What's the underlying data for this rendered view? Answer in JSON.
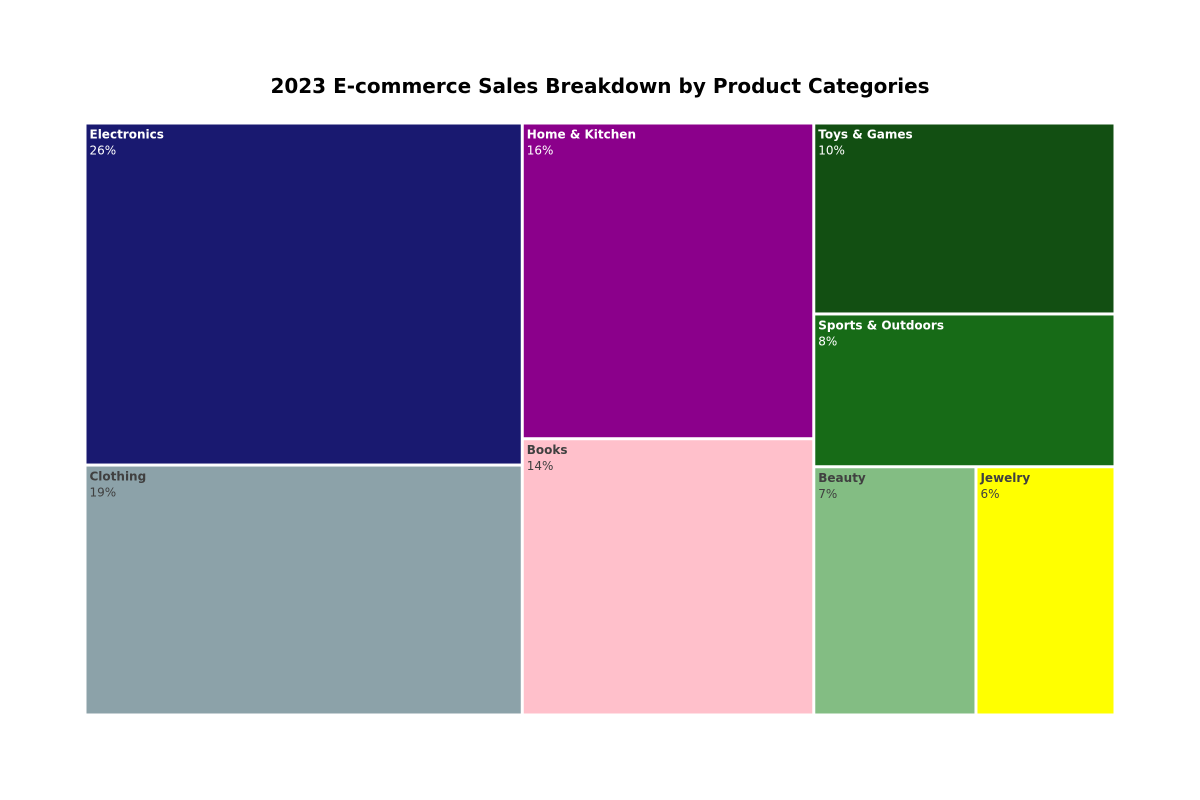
{
  "chart_data": {
    "type": "treemap",
    "title": "2023 E-commerce Sales Breakdown by Product Categories",
    "unit": "%",
    "items": [
      {
        "name": "Electronics",
        "value": 26,
        "color": "#191970",
        "text_color": "#ffffff"
      },
      {
        "name": "Clothing",
        "value": 19,
        "color": "#8ca2a9",
        "text_color": "#404040"
      },
      {
        "name": "Home & Kitchen",
        "value": 16,
        "color": "#8b008b",
        "text_color": "#ffffff"
      },
      {
        "name": "Books",
        "value": 14,
        "color": "#ffc0cb",
        "text_color": "#404040"
      },
      {
        "name": "Toys & Games",
        "value": 10,
        "color": "#124f12",
        "text_color": "#ffffff"
      },
      {
        "name": "Sports & Outdoors",
        "value": 8,
        "color": "#176b17",
        "text_color": "#ffffff"
      },
      {
        "name": "Beauty",
        "value": 7,
        "color": "#83bd83",
        "text_color": "#404040"
      },
      {
        "name": "Jewelry",
        "value": 6,
        "color": "#ffff00",
        "text_color": "#404040"
      }
    ]
  }
}
